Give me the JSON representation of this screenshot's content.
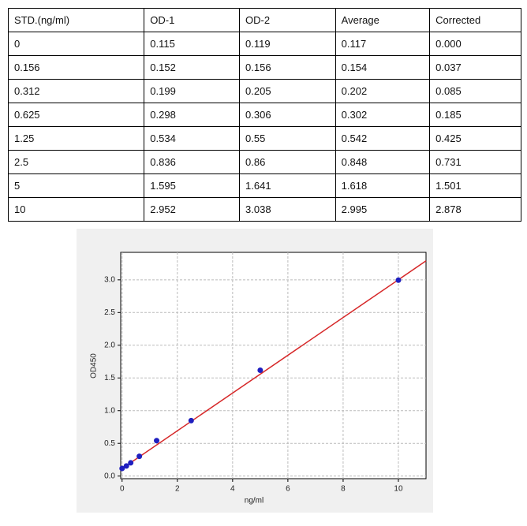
{
  "table": {
    "header": [
      "STD.(ng/ml)",
      "OD-1",
      "OD-2",
      "Average",
      "Corrected"
    ],
    "rows": [
      [
        "0",
        "0.115",
        "0.119",
        "0.117",
        "0.000"
      ],
      [
        "0.156",
        "0.152",
        "0.156",
        "0.154",
        "0.037"
      ],
      [
        "0.312",
        "0.199",
        "0.205",
        "0.202",
        "0.085"
      ],
      [
        "0.625",
        "0.298",
        "0.306",
        "0.302",
        "0.185"
      ],
      [
        "1.25",
        "0.534",
        "0.55",
        "0.542",
        "0.425"
      ],
      [
        "2.5",
        "0.836",
        "0.86",
        "0.848",
        "0.731"
      ],
      [
        "5",
        "1.595",
        "1.641",
        "1.618",
        "1.501"
      ],
      [
        "10",
        "2.952",
        "3.038",
        "2.995",
        "2.878"
      ]
    ]
  },
  "chart_data": {
    "type": "scatter",
    "x_label": "ng/ml",
    "y_label": "OD450",
    "x": [
      0,
      0.156,
      0.312,
      0.625,
      1.25,
      2.5,
      5,
      10
    ],
    "values": [
      0.117,
      0.154,
      0.202,
      0.302,
      0.542,
      0.848,
      1.618,
      2.995
    ],
    "color": "#1f1fbf",
    "fit_line": {
      "x": [
        -0.05,
        11
      ],
      "values": [
        0.1,
        3.29
      ],
      "color": "#d62728"
    },
    "xlim": [
      -0.05,
      11
    ],
    "ylim": [
      -0.04,
      3.42
    ],
    "xticks": [
      0,
      2,
      4,
      6,
      8,
      10
    ],
    "yticks": [
      {
        "value": 0,
        "label": "0.0"
      },
      {
        "value": 0.5,
        "label": "0.5"
      },
      {
        "value": 1,
        "label": "1.0"
      },
      {
        "value": 1.5,
        "label": "1.5"
      },
      {
        "value": 2,
        "label": "2.0"
      },
      {
        "value": 2.5,
        "label": "2.5"
      },
      {
        "value": 3,
        "label": "3.0"
      }
    ],
    "grid": true
  }
}
